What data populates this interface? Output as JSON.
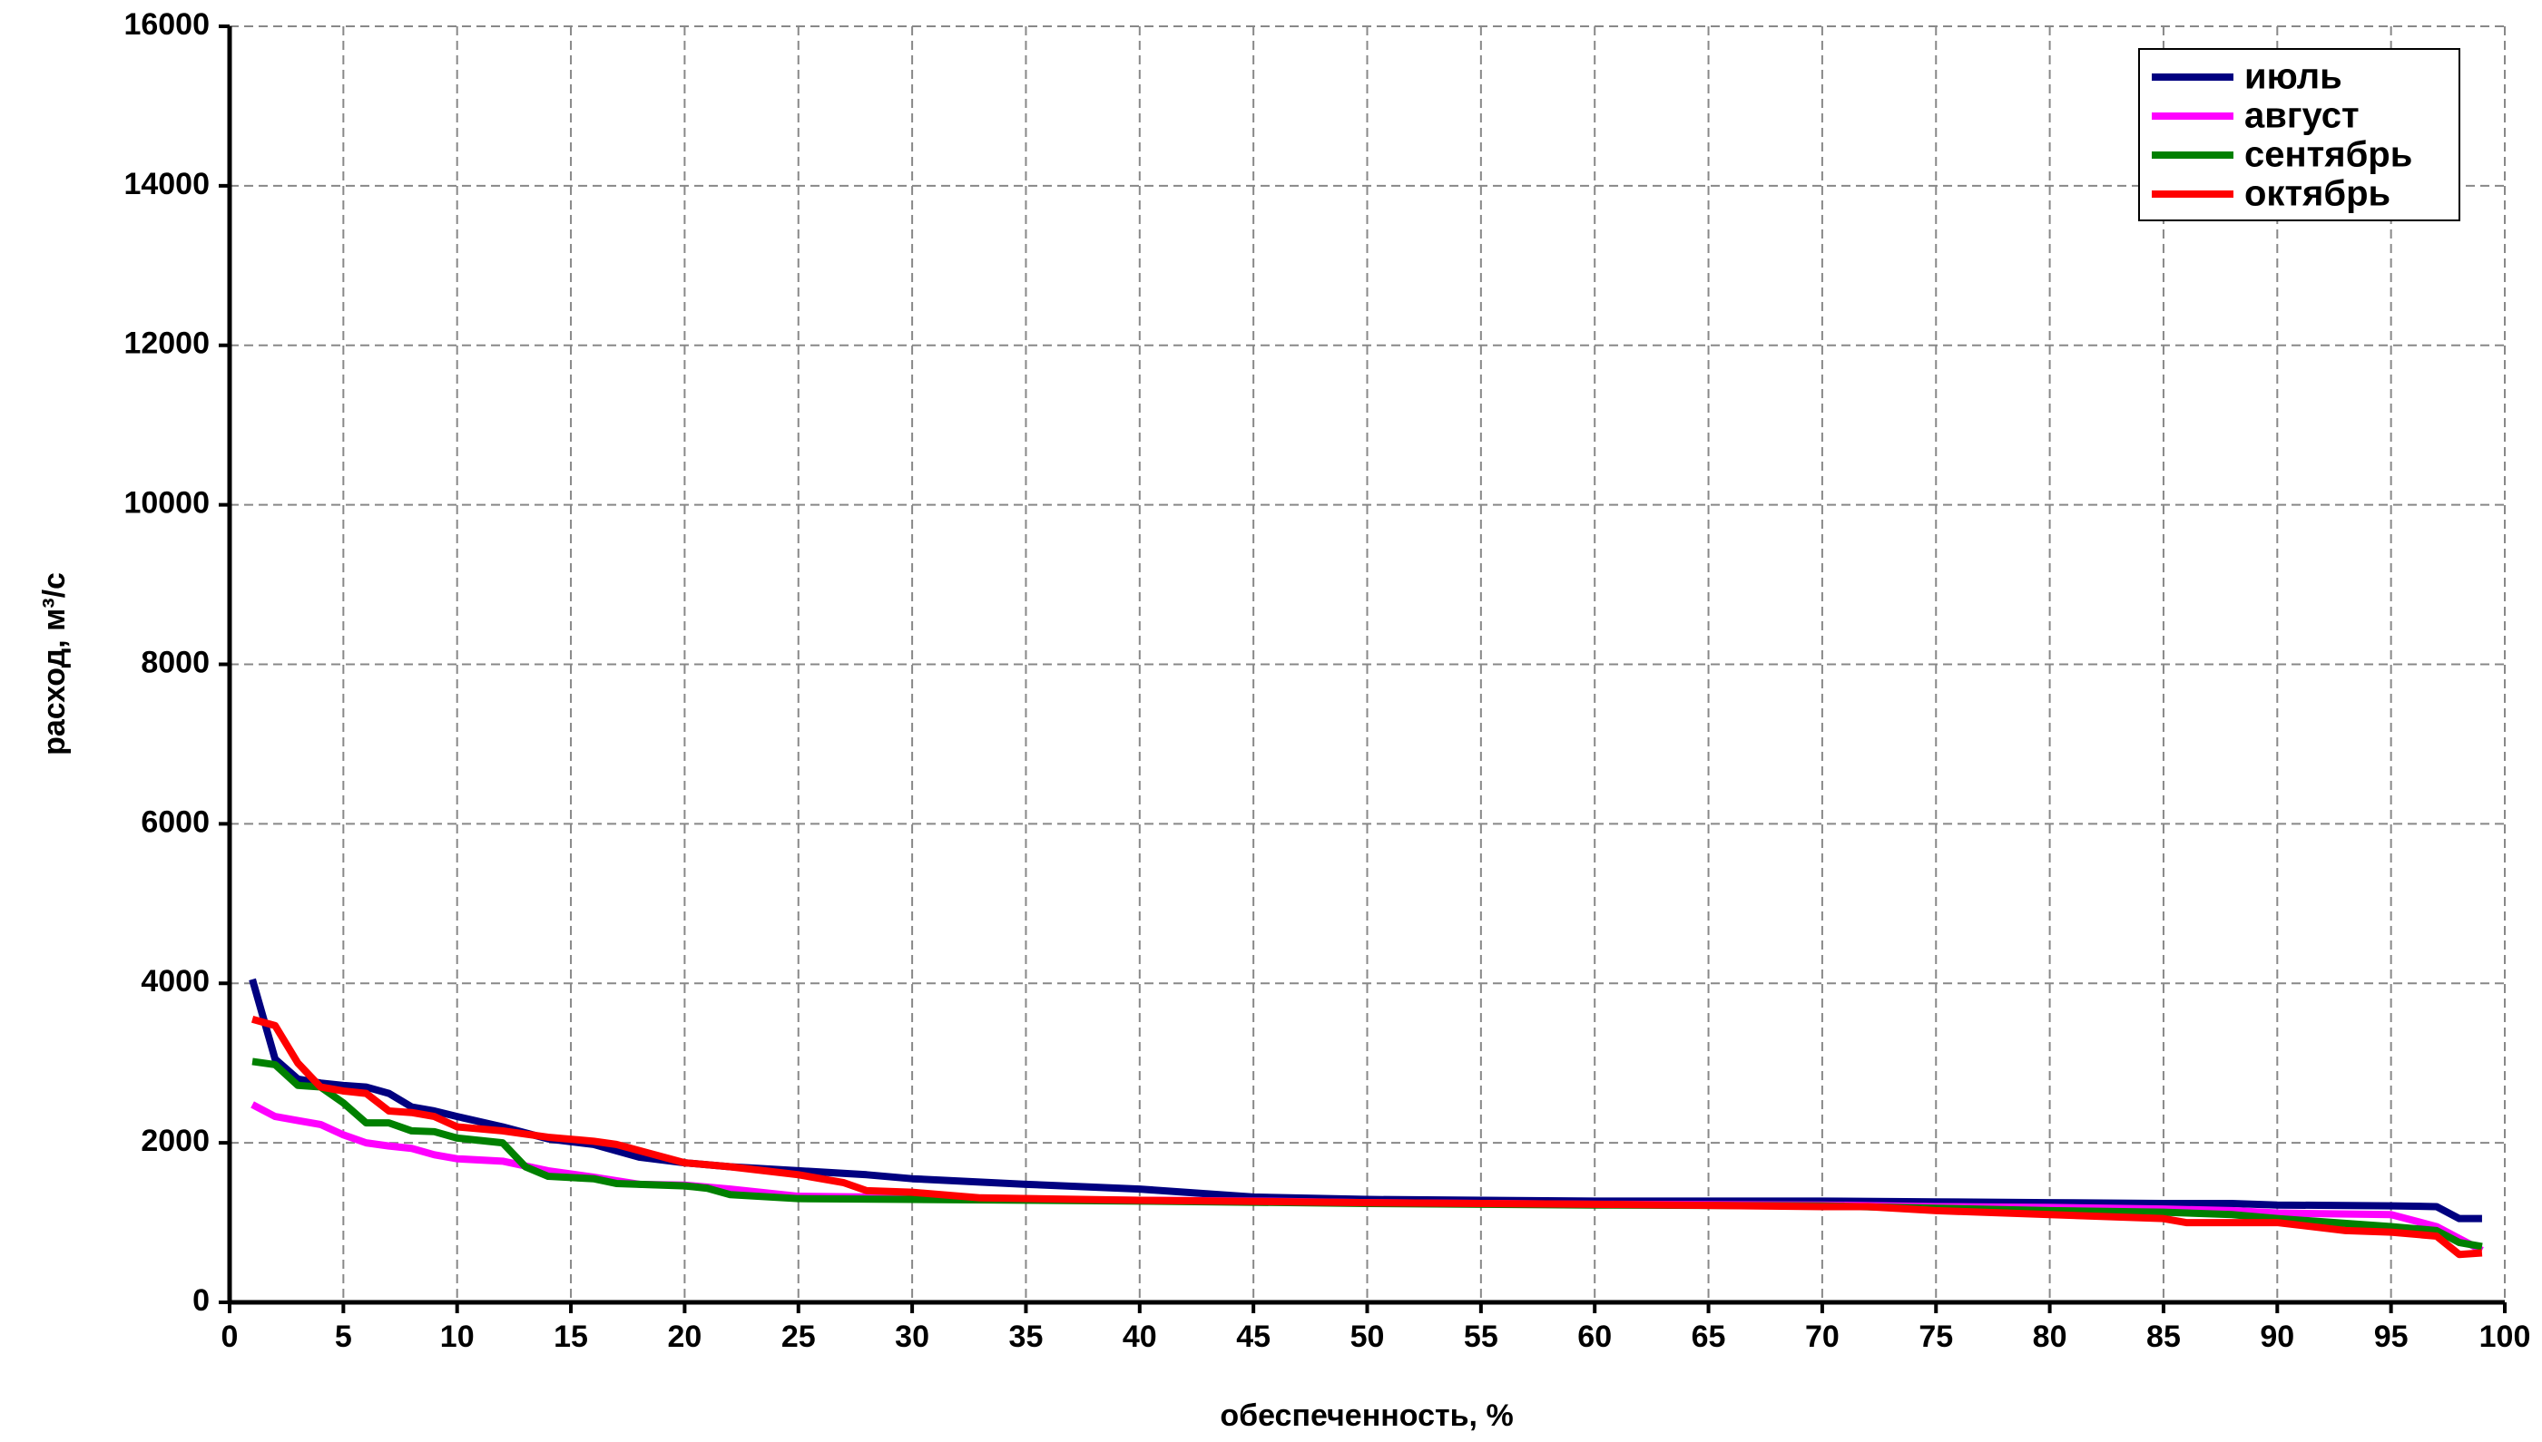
{
  "chart_data": {
    "type": "line",
    "x_label": "обеспеченность, %",
    "y_label": "расход, м³/с",
    "xlim": [
      0,
      100
    ],
    "xticks": [
      0,
      5,
      10,
      15,
      20,
      25,
      30,
      35,
      40,
      45,
      50,
      55,
      60,
      65,
      70,
      75,
      80,
      85,
      90,
      95,
      100
    ],
    "ylim": [
      0,
      16000
    ],
    "yticks": [
      0,
      2000,
      4000,
      6000,
      8000,
      10000,
      12000,
      14000,
      16000
    ],
    "grid": true,
    "legend": "top-right",
    "series": [
      {
        "name": "июль",
        "color": "#000080",
        "x": [
          1,
          2,
          3,
          4,
          5,
          6,
          7,
          8,
          9,
          10,
          12,
          14,
          16,
          18,
          20,
          22,
          25,
          28,
          30,
          35,
          40,
          45,
          50,
          60,
          70,
          75,
          80,
          85,
          88,
          90,
          95,
          97,
          98,
          99
        ],
        "values": [
          4050,
          3050,
          2800,
          2750,
          2720,
          2700,
          2620,
          2450,
          2400,
          2330,
          2200,
          2050,
          1980,
          1820,
          1750,
          1700,
          1650,
          1600,
          1550,
          1480,
          1420,
          1320,
          1290,
          1270,
          1270,
          1260,
          1250,
          1240,
          1240,
          1220,
          1210,
          1200,
          1050,
          1050
        ]
      },
      {
        "name": "август",
        "color": "#ff00ff",
        "x": [
          1,
          2,
          3,
          4,
          5,
          6,
          7,
          8,
          9,
          10,
          12,
          14,
          16,
          18,
          20,
          22,
          25,
          28,
          30,
          35,
          40,
          45,
          50,
          60,
          70,
          75,
          80,
          85,
          88,
          90,
          95,
          97,
          98,
          99
        ],
        "values": [
          2480,
          2330,
          2280,
          2230,
          2100,
          2000,
          1960,
          1930,
          1850,
          1800,
          1770,
          1650,
          1570,
          1480,
          1470,
          1420,
          1330,
          1320,
          1300,
          1290,
          1280,
          1270,
          1250,
          1230,
          1220,
          1200,
          1190,
          1170,
          1150,
          1120,
          1100,
          950,
          800,
          650
        ]
      },
      {
        "name": "сентябрь",
        "color": "#008000",
        "x": [
          1,
          2,
          3,
          4,
          5,
          6,
          7,
          8,
          9,
          10,
          12,
          13,
          14,
          16,
          17,
          20,
          21,
          22,
          25,
          30,
          40,
          50,
          60,
          70,
          75,
          80,
          85,
          88,
          90,
          95,
          97,
          98,
          99
        ],
        "values": [
          3020,
          2980,
          2720,
          2700,
          2500,
          2250,
          2250,
          2150,
          2140,
          2060,
          2000,
          1700,
          1580,
          1550,
          1490,
          1460,
          1430,
          1350,
          1300,
          1290,
          1270,
          1240,
          1220,
          1210,
          1180,
          1150,
          1130,
          1100,
          1050,
          950,
          900,
          750,
          700
        ]
      },
      {
        "name": "октябрь",
        "color": "#ff0000",
        "x": [
          1,
          2,
          3,
          4,
          5,
          6,
          7,
          8,
          9,
          10,
          12,
          14,
          16,
          17,
          20,
          22,
          25,
          27,
          28,
          30,
          33,
          40,
          50,
          60,
          70,
          72,
          75,
          80,
          85,
          86,
          90,
          93,
          95,
          97,
          98,
          99
        ],
        "values": [
          3550,
          3470,
          3000,
          2700,
          2650,
          2620,
          2400,
          2380,
          2330,
          2200,
          2150,
          2070,
          2020,
          1980,
          1750,
          1700,
          1600,
          1500,
          1400,
          1380,
          1310,
          1280,
          1250,
          1230,
          1200,
          1200,
          1150,
          1100,
          1050,
          1000,
          1000,
          900,
          880,
          830,
          600,
          620
        ]
      }
    ]
  }
}
